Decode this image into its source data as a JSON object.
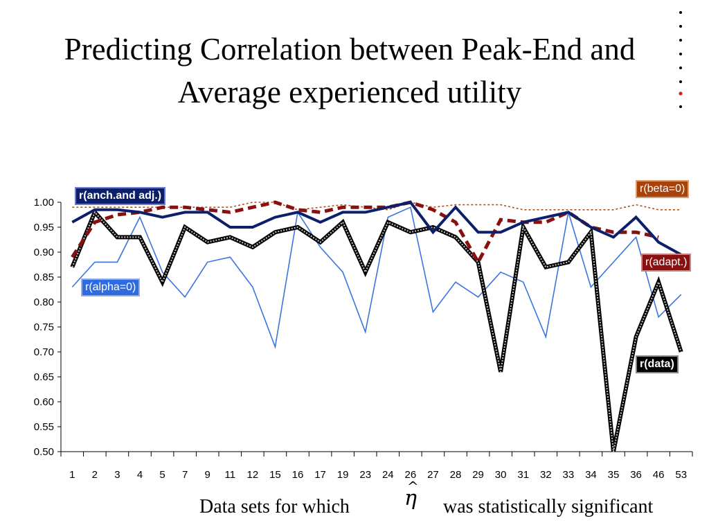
{
  "title": "Predicting Correlation between Peak-End and Average experienced utility",
  "caption": {
    "left": "Data sets for which",
    "symbol": "η",
    "symbol_accent": "^",
    "right": "was statistically significant"
  },
  "chart_data": {
    "type": "line",
    "categories": [
      "1",
      "2",
      "3",
      "4",
      "5",
      "7",
      "9",
      "11",
      "12",
      "15",
      "16",
      "17",
      "19",
      "23",
      "24",
      "26",
      "27",
      "28",
      "29",
      "30",
      "31",
      "32",
      "33",
      "34",
      "35",
      "36",
      "46",
      "53"
    ],
    "ylim": [
      0.5,
      1.0
    ],
    "yticks": [
      "0.50",
      "0.55",
      "0.60",
      "0.65",
      "0.70",
      "0.75",
      "0.80",
      "0.85",
      "0.90",
      "0.95",
      "1.00"
    ],
    "grid": false,
    "series": [
      {
        "name": "r(alpha=0)",
        "color": "#3a74e0",
        "values": [
          0.83,
          0.88,
          0.88,
          0.97,
          0.86,
          0.81,
          0.88,
          0.89,
          0.83,
          0.71,
          0.98,
          0.91,
          0.86,
          0.74,
          0.97,
          0.99,
          0.78,
          0.84,
          0.81,
          0.86,
          0.84,
          0.73,
          0.98,
          0.83,
          0.88,
          0.93,
          0.77,
          0.815
        ]
      },
      {
        "name": "r(data)",
        "color": "#000000",
        "values": [
          0.87,
          0.98,
          0.93,
          0.93,
          0.84,
          0.95,
          0.92,
          0.93,
          0.91,
          0.94,
          0.95,
          0.92,
          0.96,
          0.86,
          0.96,
          0.94,
          0.95,
          0.93,
          0.88,
          0.66,
          0.95,
          0.87,
          0.88,
          0.94,
          0.5,
          0.73,
          0.84,
          0.7
        ]
      },
      {
        "name": "r(beta=0)",
        "color": "#b0501c",
        "values": [
          0.99,
          0.99,
          0.99,
          0.99,
          0.99,
          0.99,
          0.99,
          0.99,
          1.0,
          1.0,
          0.985,
          0.99,
          0.995,
          0.99,
          0.985,
          1.0,
          0.99,
          0.995,
          0.995,
          0.995,
          0.985,
          0.985,
          0.985,
          0.985,
          0.985,
          0.995,
          0.985,
          0.985
        ]
      },
      {
        "name": "r(adapt.)",
        "color": "#8a1010",
        "values": [
          0.89,
          0.96,
          0.975,
          0.98,
          0.99,
          0.99,
          0.985,
          0.98,
          0.99,
          1.0,
          0.985,
          0.98,
          0.99,
          0.99,
          0.99,
          1.0,
          0.985,
          0.96,
          0.88,
          0.965,
          0.96,
          0.96,
          0.98,
          0.95,
          0.94,
          0.94,
          0.93,
          null
        ]
      },
      {
        "name": "r(anch.and adj.)",
        "color": "#0c1f6b",
        "values": [
          0.96,
          0.985,
          0.985,
          0.98,
          0.97,
          0.98,
          0.98,
          0.95,
          0.95,
          0.97,
          0.98,
          0.96,
          0.98,
          0.98,
          0.99,
          1.0,
          0.94,
          0.99,
          0.94,
          0.94,
          0.96,
          0.97,
          0.98,
          0.95,
          0.93,
          0.97,
          0.92,
          0.895
        ]
      }
    ]
  }
}
